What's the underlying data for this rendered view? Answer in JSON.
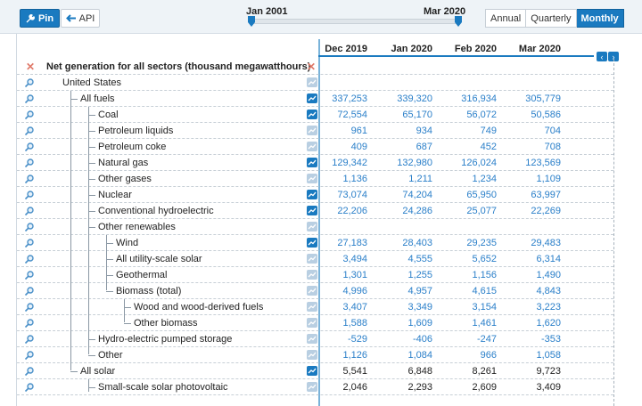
{
  "toolbar": {
    "pin_label": "Pin",
    "api_label": "API",
    "range_start": "Jan 2001",
    "range_end": "Mar 2020",
    "frequency": [
      "Annual",
      "Quarterly",
      "Monthly"
    ],
    "frequency_active": "Monthly"
  },
  "columns": [
    "Dec 2019",
    "Jan 2020",
    "Feb 2020",
    "Mar 2020"
  ],
  "header_row": {
    "label": "Net generation for all sectors (thousand megawatthours)"
  },
  "rows": [
    {
      "label": "United States",
      "level": 0,
      "chart": "off",
      "values": [
        "",
        "",
        "",
        ""
      ],
      "value_color": "dark"
    },
    {
      "label": "All fuels",
      "level": 1,
      "chart": "on",
      "values": [
        "337,253",
        "339,320",
        "316,934",
        "305,779"
      ],
      "value_color": "blue"
    },
    {
      "label": "Coal",
      "level": 2,
      "chart": "on",
      "values": [
        "72,554",
        "65,170",
        "56,072",
        "50,586"
      ],
      "value_color": "blue"
    },
    {
      "label": "Petroleum liquids",
      "level": 2,
      "chart": "off",
      "values": [
        "961",
        "934",
        "749",
        "704"
      ],
      "value_color": "blue"
    },
    {
      "label": "Petroleum coke",
      "level": 2,
      "chart": "off",
      "values": [
        "409",
        "687",
        "452",
        "708"
      ],
      "value_color": "blue"
    },
    {
      "label": "Natural gas",
      "level": 2,
      "chart": "on",
      "values": [
        "129,342",
        "132,980",
        "126,024",
        "123,569"
      ],
      "value_color": "blue"
    },
    {
      "label": "Other gases",
      "level": 2,
      "chart": "off",
      "values": [
        "1,136",
        "1,211",
        "1,234",
        "1,109"
      ],
      "value_color": "blue"
    },
    {
      "label": "Nuclear",
      "level": 2,
      "chart": "on",
      "values": [
        "73,074",
        "74,204",
        "65,950",
        "63,997"
      ],
      "value_color": "blue"
    },
    {
      "label": "Conventional hydroelectric",
      "level": 2,
      "chart": "on",
      "values": [
        "22,206",
        "24,286",
        "25,077",
        "22,269"
      ],
      "value_color": "blue"
    },
    {
      "label": "Other renewables",
      "level": 2,
      "chart": "off",
      "values": [
        "",
        "",
        "",
        ""
      ],
      "value_color": "blue"
    },
    {
      "label": "Wind",
      "level": 3,
      "chart": "on",
      "values": [
        "27,183",
        "28,403",
        "29,235",
        "29,483"
      ],
      "value_color": "blue"
    },
    {
      "label": "All utility-scale solar",
      "level": 3,
      "chart": "off",
      "values": [
        "3,494",
        "4,555",
        "5,652",
        "6,314"
      ],
      "value_color": "blue"
    },
    {
      "label": "Geothermal",
      "level": 3,
      "chart": "off",
      "values": [
        "1,301",
        "1,255",
        "1,156",
        "1,490"
      ],
      "value_color": "blue"
    },
    {
      "label": "Biomass (total)",
      "level": 3,
      "chart": "off",
      "values": [
        "4,996",
        "4,957",
        "4,615",
        "4,843"
      ],
      "value_color": "blue"
    },
    {
      "label": "Wood and wood-derived fuels",
      "level": 4,
      "chart": "off",
      "values": [
        "3,407",
        "3,349",
        "3,154",
        "3,223"
      ],
      "value_color": "blue"
    },
    {
      "label": "Other biomass",
      "level": 4,
      "chart": "off",
      "values": [
        "1,588",
        "1,609",
        "1,461",
        "1,620"
      ],
      "value_color": "blue"
    },
    {
      "label": "Hydro-electric pumped storage",
      "level": 2,
      "chart": "off",
      "values": [
        "-529",
        "-406",
        "-247",
        "-353"
      ],
      "value_color": "blue"
    },
    {
      "label": "Other",
      "level": 2,
      "chart": "off",
      "values": [
        "1,126",
        "1,084",
        "966",
        "1,058"
      ],
      "value_color": "blue"
    },
    {
      "label": "All solar",
      "level": 1,
      "chart": "on",
      "values": [
        "5,541",
        "6,848",
        "8,261",
        "9,723"
      ],
      "value_color": "dark"
    },
    {
      "label": "Small-scale solar photovoltaic",
      "level": 2,
      "chart": "off",
      "values": [
        "2,046",
        "2,293",
        "2,609",
        "3,409"
      ],
      "value_color": "dark"
    }
  ],
  "colors": {
    "accent": "#1a7ac0",
    "value_blue": "#2a7fc9",
    "remove_x": "#e07a6a"
  },
  "icons": {
    "pin": "wrench-icon",
    "api": "arrow-left-icon",
    "search": "magnifier-icon",
    "chart": "line-chart-icon",
    "remove": "close-icon"
  }
}
